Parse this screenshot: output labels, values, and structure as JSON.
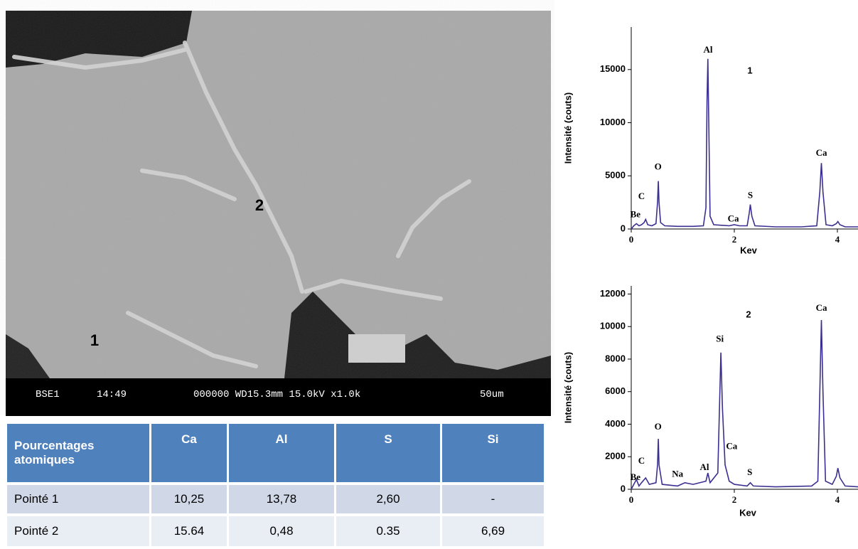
{
  "image": {
    "labels": [
      "1",
      "2"
    ],
    "caption": {
      "mode": "BSE1",
      "time": "14:49",
      "info": "000000 WD15.3mm 15.0kV x1.0k",
      "scale": "50um"
    }
  },
  "table": {
    "header": [
      "Pourcentages atomiques",
      "Ca",
      "Al",
      "S",
      "Si"
    ],
    "rows": [
      [
        "Pointé 1",
        "10,25",
        "13,78",
        "2,60",
        "-"
      ],
      [
        "Pointé 2",
        "15.64",
        "0,48",
        "0.35",
        "6,69"
      ]
    ]
  },
  "chart_data": [
    {
      "type": "line",
      "title": "1",
      "y_label": "Intensité (couts)",
      "x_label": "Kev",
      "xlim": [
        0,
        4.4
      ],
      "ylim": [
        0,
        19000
      ],
      "xticks": [
        0,
        2,
        4
      ],
      "yticks": [
        0,
        5000,
        10000,
        15000
      ],
      "x": [
        0,
        0.05,
        0.1,
        0.15,
        0.2,
        0.25,
        0.28,
        0.32,
        0.4,
        0.48,
        0.51,
        0.525,
        0.54,
        0.57,
        0.65,
        0.9,
        1.2,
        1.4,
        1.45,
        1.47,
        1.487,
        1.51,
        1.53,
        1.6,
        1.9,
        2.0,
        2.1,
        2.25,
        2.29,
        2.31,
        2.34,
        2.4,
        2.8,
        3.3,
        3.6,
        3.66,
        3.69,
        3.72,
        3.78,
        3.9,
        3.98,
        4.01,
        4.05,
        4.15,
        4.4
      ],
      "series": [
        {
          "color": "#3b2f8f",
          "values": [
            0,
            300,
            500,
            300,
            400,
            600,
            900,
            400,
            300,
            500,
            2500,
            4500,
            2500,
            600,
            300,
            250,
            250,
            300,
            2000,
            12000,
            16000,
            8000,
            1200,
            400,
            300,
            400,
            300,
            300,
            1500,
            2300,
            1200,
            300,
            200,
            200,
            300,
            3500,
            6200,
            3500,
            400,
            300,
            500,
            700,
            400,
            200,
            200
          ]
        }
      ],
      "annotations": [
        {
          "text": "Be",
          "x": 0.08,
          "y": 1300
        },
        {
          "text": "C",
          "x": 0.2,
          "y": 3000
        },
        {
          "text": "O",
          "x": 0.52,
          "y": 5800
        },
        {
          "text": "Al",
          "x": 1.49,
          "y": 16800
        },
        {
          "text": "Ca",
          "x": 1.98,
          "y": 900
        },
        {
          "text": "S",
          "x": 2.31,
          "y": 3100
        },
        {
          "text": "Ca",
          "x": 3.69,
          "y": 7100
        }
      ]
    },
    {
      "type": "line",
      "title": "2",
      "y_label": "Intensité (couts)",
      "x_label": "Kev",
      "xlim": [
        0,
        4.4
      ],
      "ylim": [
        0,
        12500
      ],
      "xticks": [
        0,
        2,
        4
      ],
      "yticks": [
        0,
        2000,
        4000,
        6000,
        8000,
        10000,
        12000
      ],
      "x": [
        0,
        0.05,
        0.1,
        0.15,
        0.2,
        0.28,
        0.35,
        0.48,
        0.51,
        0.525,
        0.54,
        0.6,
        0.9,
        1.04,
        1.2,
        1.45,
        1.487,
        1.53,
        1.68,
        1.72,
        1.74,
        1.77,
        1.82,
        1.9,
        2.0,
        2.25,
        2.31,
        2.37,
        2.8,
        3.5,
        3.62,
        3.66,
        3.69,
        3.72,
        3.77,
        3.9,
        3.98,
        4.01,
        4.05,
        4.15,
        4.4
      ],
      "series": [
        {
          "color": "#3b2f8f",
          "values": [
            0,
            300,
            600,
            200,
            400,
            700,
            300,
            400,
            1500,
            3100,
            1500,
            300,
            200,
            400,
            300,
            500,
            1000,
            400,
            1000,
            6000,
            8400,
            5000,
            1500,
            500,
            300,
            200,
            400,
            200,
            150,
            200,
            500,
            6000,
            10400,
            6000,
            500,
            300,
            800,
            1300,
            700,
            200,
            150
          ]
        }
      ],
      "annotations": [
        {
          "text": "Be",
          "x": 0.08,
          "y": 700
        },
        {
          "text": "C",
          "x": 0.2,
          "y": 1700
        },
        {
          "text": "O",
          "x": 0.52,
          "y": 3800
        },
        {
          "text": "Na",
          "x": 0.9,
          "y": 900
        },
        {
          "text": "Al",
          "x": 1.42,
          "y": 1300
        },
        {
          "text": "Si",
          "x": 1.72,
          "y": 9200
        },
        {
          "text": "Ca",
          "x": 1.95,
          "y": 2600
        },
        {
          "text": "S",
          "x": 2.3,
          "y": 1000
        },
        {
          "text": "Ca",
          "x": 3.69,
          "y": 11100
        }
      ]
    }
  ]
}
